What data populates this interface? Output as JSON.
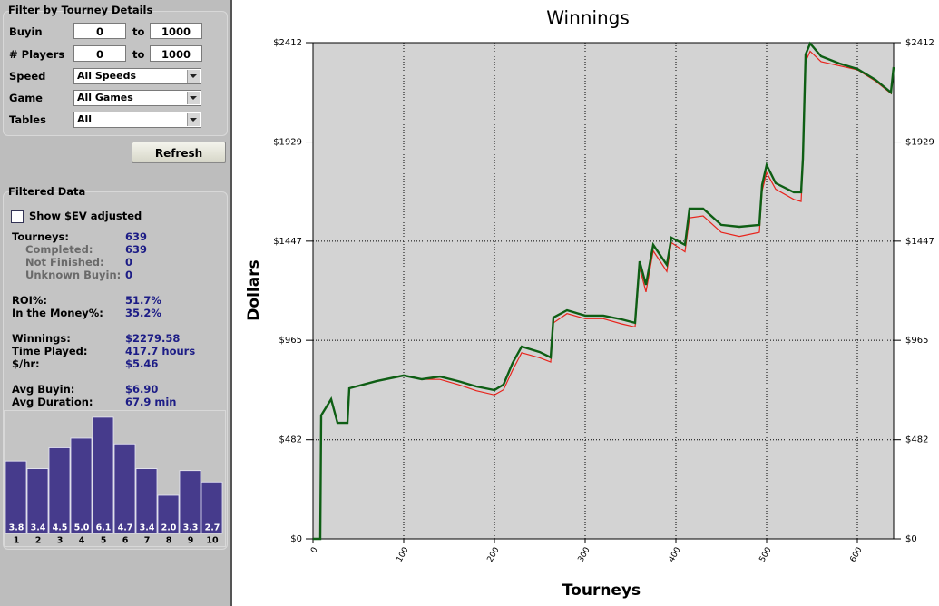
{
  "sidebar": {
    "filter": {
      "title": "Filter by Tourney Details",
      "ranges": [
        {
          "label": "Buyin",
          "from": "0",
          "sep": "to",
          "to": "1000"
        },
        {
          "label": "# Players",
          "from": "0",
          "sep": "to",
          "to": "1000"
        }
      ],
      "selects": [
        {
          "label": "Speed",
          "value": "All Speeds"
        },
        {
          "label": "Game",
          "value": "All Games"
        },
        {
          "label": "Tables",
          "value": "All"
        }
      ],
      "button": "Refresh"
    },
    "filtered": {
      "title": "Filtered Data",
      "checkbox": "Show $EV adjusted",
      "groups": [
        [
          {
            "label": "Tourneys:",
            "value": "639"
          },
          {
            "label": "Completed:",
            "value": "639",
            "sub": true
          },
          {
            "label": "Not Finished:",
            "value": "0",
            "sub": true
          },
          {
            "label": "Unknown Buyin:",
            "value": "0",
            "sub": true
          }
        ],
        [
          {
            "label": "ROI%:",
            "value": "51.7%"
          },
          {
            "label": "In the Money%:",
            "value": "35.2%"
          }
        ],
        [
          {
            "label": "Winnings:",
            "value": "$2279.58"
          },
          {
            "label": "Time Played:",
            "value": "417.7 hours"
          },
          {
            "label": "$/hr:",
            "value": "$5.46"
          }
        ],
        [
          {
            "label": "Avg Buyin:",
            "value": "$6.90"
          },
          {
            "label": "Avg Duration:",
            "value": "67.9 min"
          }
        ]
      ]
    }
  },
  "chart_data": [
    {
      "type": "line",
      "title": "Winnings",
      "x_label": "Tourneys",
      "y_label": "Dollars",
      "x": [
        0,
        8,
        9,
        20,
        27,
        38,
        40,
        70,
        100,
        120,
        140,
        160,
        180,
        200,
        210,
        220,
        230,
        250,
        262,
        265,
        280,
        300,
        320,
        340,
        355,
        360,
        367,
        375,
        390,
        395,
        410,
        415,
        430,
        450,
        470,
        492,
        495,
        500,
        510,
        530,
        538,
        540,
        543,
        548,
        560,
        580,
        600,
        620,
        637,
        640
      ],
      "series": [
        {
          "color": "#e8241c",
          "values": [
            0,
            0,
            600,
            679,
            564,
            564,
            732,
            767,
            794,
            776,
            775,
            750,
            720,
            700,
            725,
            820,
            905,
            880,
            860,
            1050,
            1095,
            1070,
            1070,
            1045,
            1030,
            1320,
            1200,
            1400,
            1300,
            1440,
            1395,
            1560,
            1570,
            1490,
            1470,
            1490,
            1690,
            1780,
            1700,
            1650,
            1640,
            1820,
            2320,
            2370,
            2320,
            2300,
            2280,
            2225,
            2165,
            2290
          ]
        },
        {
          "color": "#0e5e14",
          "values": [
            0,
            0,
            600,
            679,
            564,
            564,
            732,
            767,
            794,
            776,
            789,
            767,
            741,
            723,
            750,
            855,
            935,
            908,
            882,
            1076,
            1111,
            1085,
            1085,
            1067,
            1050,
            1349,
            1235,
            1429,
            1332,
            1464,
            1429,
            1605,
            1605,
            1526,
            1517,
            1526,
            1720,
            1817,
            1729,
            1685,
            1685,
            1848,
            2355,
            2408,
            2346,
            2311,
            2284,
            2231,
            2170,
            2293
          ]
        }
      ],
      "xlim": [
        0,
        640
      ],
      "xticks": [
        0,
        100,
        200,
        300,
        400,
        500,
        600
      ],
      "ylim": [
        0,
        2412
      ],
      "yticks": [
        {
          "value": 0,
          "label": "$0"
        },
        {
          "value": 482,
          "label": "$482"
        },
        {
          "value": 965,
          "label": "$965"
        },
        {
          "value": 1447,
          "label": "$1447"
        },
        {
          "value": 1929,
          "label": "$1929"
        },
        {
          "value": 2412,
          "label": "$2412"
        }
      ],
      "grid": true
    },
    {
      "type": "bar",
      "categories": [
        "1",
        "2",
        "3",
        "4",
        "5",
        "6",
        "7",
        "8",
        "9",
        "10"
      ],
      "values": [
        3.8,
        3.4,
        4.5,
        5.0,
        6.1,
        4.7,
        3.4,
        2.0,
        3.3,
        2.7
      ],
      "value_labels": [
        "3.8",
        "3.4",
        "4.5",
        "5.0",
        "6.1",
        "4.7",
        "3.4",
        "2.0",
        "3.3",
        "2.7"
      ],
      "color": "#463b8c"
    }
  ]
}
